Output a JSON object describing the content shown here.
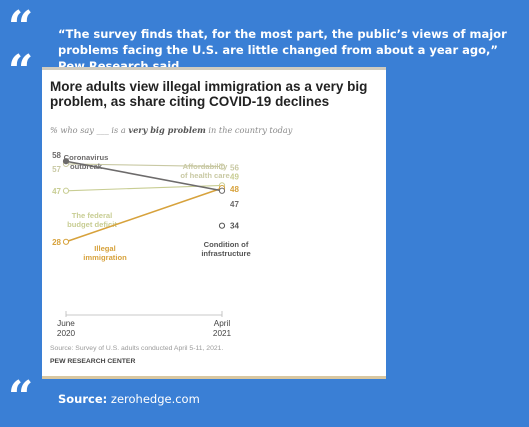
{
  "quote": {
    "text": "“The survey finds that, for the most part, the public’s views of major problems facing the U.S. are little changed from about a year ago,” Pew Research said."
  },
  "source_label": "Source:",
  "source_value": "zerohedge.com",
  "colors": {
    "background": "#3a7fd5",
    "coronavirus": "#6d6b6b",
    "health_care": "#c9c9a4",
    "deficit": "#c8cd93",
    "immigration": "#d7a23c",
    "infrastructure": "#555555"
  },
  "chart_data": {
    "type": "line",
    "title": "More adults view illegal immigration as a very big problem, as share citing COVID-19 declines",
    "subtitle_prefix": "% who say ___ is a ",
    "subtitle_emphasis": "very big problem",
    "subtitle_suffix": " in the country today",
    "x": [
      "June\n2020",
      "April\n2021"
    ],
    "x_labels": [
      {
        "line1": "June",
        "line2": "2020"
      },
      {
        "line1": "April",
        "line2": "2021"
      }
    ],
    "ylim": [
      0,
      70
    ],
    "series": [
      {
        "key": "coronavirus",
        "name": "Coronavirus outbreak",
        "name_lines": [
          "Coronavirus",
          "outbreak"
        ],
        "values": [
          58,
          47
        ],
        "start_label": "58",
        "end_label": "47"
      },
      {
        "key": "health_care",
        "name": "Affordability of health care",
        "name_lines": [
          "Affordability",
          "of health care"
        ],
        "values": [
          57,
          56
        ],
        "start_label": "57",
        "end_label": "56"
      },
      {
        "key": "deficit",
        "name": "The federal budget deficit",
        "name_lines": [
          "The federal",
          "budget deficit"
        ],
        "values": [
          47,
          49
        ],
        "start_label": "47",
        "end_label": "49"
      },
      {
        "key": "immigration",
        "name": "Illegal immigration",
        "name_lines": [
          "Illegal",
          "immigration"
        ],
        "values": [
          28,
          48
        ],
        "start_label": "28",
        "end_label": "48"
      },
      {
        "key": "infrastructure",
        "name": "Condition of infrastructure",
        "name_lines": [
          "Condition of",
          "infrastructure"
        ],
        "values": [
          null,
          34
        ],
        "start_label": "",
        "end_label": "34"
      }
    ],
    "source": "Source: Survey of U.S. adults conducted April 5-11, 2021.",
    "brand": "PEW RESEARCH CENTER"
  }
}
